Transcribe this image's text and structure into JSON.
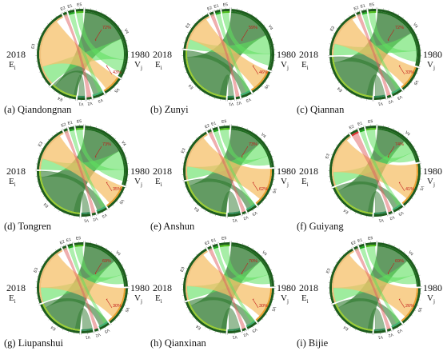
{
  "panels": [
    {
      "caption": "(a) Qiandongnan",
      "left_year": "2018",
      "right_year": "1980",
      "left_symbol": "E",
      "left_sub": "i",
      "right_symbol": "V",
      "right_sub": "j",
      "segments": [
        {
          "label": "E1",
          "group": "E",
          "value": 0.5,
          "color": "#1aa81a"
        },
        {
          "label": "E2",
          "group": "E",
          "value": 0.3,
          "color": "#c8a58a"
        },
        {
          "label": "E3",
          "group": "E",
          "value": 6.5,
          "color": "#f0c07a"
        },
        {
          "label": "E4",
          "group": "E",
          "value": 2.2,
          "color": "#9acd32"
        },
        {
          "label": "E5",
          "group": "E",
          "value": 0.6,
          "color": "#4cbb17"
        },
        {
          "label": "V1",
          "group": "V",
          "value": 0.6,
          "color": "#2e8b57"
        },
        {
          "label": "V2",
          "group": "V",
          "value": 0.4,
          "color": "#f4a6a6"
        },
        {
          "label": "V3",
          "group": "V",
          "value": 0.9,
          "color": "#3cb371"
        },
        {
          "label": "V4",
          "group": "V",
          "value": 7.2,
          "color": "#1e6b1e"
        },
        {
          "label": "V5",
          "group": "V",
          "value": 1.6,
          "color": "#e8a030"
        }
      ],
      "annotations": [
        {
          "text": "72%"
        },
        {
          "text": "43%"
        }
      ]
    },
    {
      "caption": "(b) Zunyi",
      "left_year": "2018",
      "right_year": "1980",
      "left_symbol": "E",
      "left_sub": "i",
      "right_symbol": "V",
      "right_sub": "j",
      "segments": [
        {
          "label": "E1",
          "group": "E",
          "value": 0.4,
          "color": "#1aa81a"
        },
        {
          "label": "E2",
          "group": "E",
          "value": 0.3,
          "color": "#c8a58a"
        },
        {
          "label": "E3",
          "group": "E",
          "value": 3.2,
          "color": "#f0c07a"
        },
        {
          "label": "E4",
          "group": "E",
          "value": 5.3,
          "color": "#9acd32"
        },
        {
          "label": "E5",
          "group": "E",
          "value": 0.6,
          "color": "#4cbb17"
        },
        {
          "label": "V1",
          "group": "V",
          "value": 0.5,
          "color": "#2e8b57"
        },
        {
          "label": "V2",
          "group": "V",
          "value": 0.3,
          "color": "#f4a6a6"
        },
        {
          "label": "V3",
          "group": "V",
          "value": 0.8,
          "color": "#3cb371"
        },
        {
          "label": "V4",
          "group": "V",
          "value": 6.2,
          "color": "#1e6b1e"
        },
        {
          "label": "V5",
          "group": "V",
          "value": 2.0,
          "color": "#e8a030"
        }
      ],
      "annotations": [
        {
          "text": "59%"
        },
        {
          "text": "46%"
        }
      ]
    },
    {
      "caption": "(c) Qiannan",
      "left_year": "2018",
      "right_year": "1980",
      "left_symbol": "E",
      "left_sub": "i",
      "right_symbol": "V",
      "right_sub": "j",
      "segments": [
        {
          "label": "E1",
          "group": "E",
          "value": 0.4,
          "color": "#1aa81a"
        },
        {
          "label": "E2",
          "group": "E",
          "value": 0.3,
          "color": "#c8a58a"
        },
        {
          "label": "E3",
          "group": "E",
          "value": 3.8,
          "color": "#f0c07a"
        },
        {
          "label": "E4",
          "group": "E",
          "value": 4.9,
          "color": "#9acd32"
        },
        {
          "label": "E5",
          "group": "E",
          "value": 0.6,
          "color": "#4cbb17"
        },
        {
          "label": "V1",
          "group": "V",
          "value": 0.9,
          "color": "#2e8b57"
        },
        {
          "label": "V2",
          "group": "V",
          "value": 0.3,
          "color": "#f4a6a6"
        },
        {
          "label": "V3",
          "group": "V",
          "value": 0.8,
          "color": "#3cb371"
        },
        {
          "label": "V4",
          "group": "V",
          "value": 6.0,
          "color": "#1e6b1e"
        },
        {
          "label": "V5",
          "group": "V",
          "value": 2.0,
          "color": "#e8a030"
        }
      ],
      "annotations": [
        {
          "text": "72%"
        },
        {
          "text": "33%"
        }
      ]
    },
    {
      "caption": "(d) Tongren",
      "left_year": "2018",
      "right_year": "1980",
      "left_symbol": "E",
      "left_sub": "i",
      "right_symbol": "V",
      "right_sub": "j",
      "segments": [
        {
          "label": "E1",
          "group": "E",
          "value": 0.4,
          "color": "#1aa81a"
        },
        {
          "label": "E2",
          "group": "E",
          "value": 0.3,
          "color": "#c8a58a"
        },
        {
          "label": "E3",
          "group": "E",
          "value": 3.6,
          "color": "#f0c07a"
        },
        {
          "label": "E4",
          "group": "E",
          "value": 5.1,
          "color": "#9acd32"
        },
        {
          "label": "E5",
          "group": "E",
          "value": 0.6,
          "color": "#4cbb17"
        },
        {
          "label": "V1",
          "group": "V",
          "value": 0.7,
          "color": "#2e8b57"
        },
        {
          "label": "V2",
          "group": "V",
          "value": 0.3,
          "color": "#f4a6a6"
        },
        {
          "label": "V3",
          "group": "V",
          "value": 0.8,
          "color": "#3cb371"
        },
        {
          "label": "V4",
          "group": "V",
          "value": 6.2,
          "color": "#1e6b1e"
        },
        {
          "label": "V5",
          "group": "V",
          "value": 2.0,
          "color": "#e8a030"
        }
      ],
      "annotations": [
        {
          "text": "73%"
        },
        {
          "text": "35%"
        }
      ]
    },
    {
      "caption": "(e) Anshun",
      "left_year": "2018",
      "right_year": "1980",
      "left_symbol": "E",
      "left_sub": "i",
      "right_symbol": "V",
      "right_sub": "j",
      "segments": [
        {
          "label": "E1",
          "group": "E",
          "value": 0.4,
          "color": "#1aa81a"
        },
        {
          "label": "E2",
          "group": "E",
          "value": 0.3,
          "color": "#c8a58a"
        },
        {
          "label": "E3",
          "group": "E",
          "value": 4.2,
          "color": "#f0c07a"
        },
        {
          "label": "E4",
          "group": "E",
          "value": 4.3,
          "color": "#9acd32"
        },
        {
          "label": "E5",
          "group": "E",
          "value": 0.8,
          "color": "#4cbb17"
        },
        {
          "label": "V1",
          "group": "V",
          "value": 1.0,
          "color": "#2e8b57"
        },
        {
          "label": "V2",
          "group": "V",
          "value": 0.3,
          "color": "#f4a6a6"
        },
        {
          "label": "V3",
          "group": "V",
          "value": 0.8,
          "color": "#3cb371"
        },
        {
          "label": "V4",
          "group": "V",
          "value": 4.8,
          "color": "#1e6b1e"
        },
        {
          "label": "V5",
          "group": "V",
          "value": 3.1,
          "color": "#e8a030"
        }
      ],
      "annotations": [
        {
          "text": "73%"
        },
        {
          "text": "62%"
        }
      ]
    },
    {
      "caption": "(f) Guiyang",
      "left_year": "2018",
      "right_year": "1980",
      "left_symbol": "E",
      "left_sub": "i",
      "right_symbol": "V",
      "right_sub": "j",
      "segments": [
        {
          "label": "E1",
          "group": "E",
          "value": 0.4,
          "color": "#1aa81a"
        },
        {
          "label": "E2",
          "group": "E",
          "value": 0.6,
          "color": "#e03030"
        },
        {
          "label": "E3",
          "group": "E",
          "value": 4.4,
          "color": "#f0c07a"
        },
        {
          "label": "E4",
          "group": "E",
          "value": 3.8,
          "color": "#9acd32"
        },
        {
          "label": "E5",
          "group": "E",
          "value": 0.8,
          "color": "#4cbb17"
        },
        {
          "label": "V1",
          "group": "V",
          "value": 1.0,
          "color": "#2e8b57"
        },
        {
          "label": "V2",
          "group": "V",
          "value": 0.3,
          "color": "#f4a6a6"
        },
        {
          "label": "V3",
          "group": "V",
          "value": 0.8,
          "color": "#3cb371"
        },
        {
          "label": "V4",
          "group": "V",
          "value": 4.4,
          "color": "#1e6b1e"
        },
        {
          "label": "V5",
          "group": "V",
          "value": 3.5,
          "color": "#e8a030"
        }
      ],
      "annotations": [
        {
          "text": "74%"
        },
        {
          "text": "41%"
        }
      ]
    },
    {
      "caption": "(g) Liupanshui",
      "left_year": "2018",
      "right_year": "1980",
      "left_symbol": "E",
      "left_sub": "i",
      "right_symbol": "V",
      "right_sub": "j",
      "segments": [
        {
          "label": "E1",
          "group": "E",
          "value": 0.4,
          "color": "#1aa81a"
        },
        {
          "label": "E2",
          "group": "E",
          "value": 0.3,
          "color": "#c8a58a"
        },
        {
          "label": "E3",
          "group": "E",
          "value": 4.8,
          "color": "#f0c07a"
        },
        {
          "label": "E4",
          "group": "E",
          "value": 3.8,
          "color": "#9acd32"
        },
        {
          "label": "E5",
          "group": "E",
          "value": 0.7,
          "color": "#4cbb17"
        },
        {
          "label": "V1",
          "group": "V",
          "value": 0.9,
          "color": "#2e8b57"
        },
        {
          "label": "V2",
          "group": "V",
          "value": 0.3,
          "color": "#f4a6a6"
        },
        {
          "label": "V3",
          "group": "V",
          "value": 0.8,
          "color": "#3cb371"
        },
        {
          "label": "V4",
          "group": "V",
          "value": 5.0,
          "color": "#1e6b1e"
        },
        {
          "label": "V5",
          "group": "V",
          "value": 3.0,
          "color": "#e8a030"
        }
      ],
      "annotations": [
        {
          "text": "69%"
        },
        {
          "text": "30%"
        }
      ]
    },
    {
      "caption": "(h) Qianxinan",
      "left_year": "2018",
      "right_year": "1980",
      "left_symbol": "E",
      "left_sub": "i",
      "right_symbol": "V",
      "right_sub": "j",
      "segments": [
        {
          "label": "E1",
          "group": "E",
          "value": 0.4,
          "color": "#1aa81a"
        },
        {
          "label": "E2",
          "group": "E",
          "value": 0.3,
          "color": "#c8a58a"
        },
        {
          "label": "E3",
          "group": "E",
          "value": 4.5,
          "color": "#f0c07a"
        },
        {
          "label": "E4",
          "group": "E",
          "value": 4.0,
          "color": "#9acd32"
        },
        {
          "label": "E5",
          "group": "E",
          "value": 0.8,
          "color": "#4cbb17"
        },
        {
          "label": "V1",
          "group": "V",
          "value": 1.0,
          "color": "#2e8b57"
        },
        {
          "label": "V2",
          "group": "V",
          "value": 0.3,
          "color": "#f4a6a6"
        },
        {
          "label": "V3",
          "group": "V",
          "value": 0.8,
          "color": "#3cb371"
        },
        {
          "label": "V4",
          "group": "V",
          "value": 5.0,
          "color": "#1e6b1e"
        },
        {
          "label": "V5",
          "group": "V",
          "value": 2.9,
          "color": "#e8a030"
        }
      ],
      "annotations": [
        {
          "text": "70%"
        },
        {
          "text": "30%"
        }
      ]
    },
    {
      "caption": "(i) Bijie",
      "left_year": "2018",
      "right_year": "1980",
      "left_symbol": "E",
      "left_sub": "i",
      "right_symbol": "V",
      "right_sub": "j",
      "segments": [
        {
          "label": "E1",
          "group": "E",
          "value": 0.4,
          "color": "#1aa81a"
        },
        {
          "label": "E2",
          "group": "E",
          "value": 0.3,
          "color": "#c8a58a"
        },
        {
          "label": "E3",
          "group": "E",
          "value": 4.7,
          "color": "#f0c07a"
        },
        {
          "label": "E4",
          "group": "E",
          "value": 3.8,
          "color": "#9acd32"
        },
        {
          "label": "E5",
          "group": "E",
          "value": 0.8,
          "color": "#4cbb17"
        },
        {
          "label": "V1",
          "group": "V",
          "value": 0.9,
          "color": "#2e8b57"
        },
        {
          "label": "V2",
          "group": "V",
          "value": 0.3,
          "color": "#f4a6a6"
        },
        {
          "label": "V3",
          "group": "V",
          "value": 0.8,
          "color": "#3cb371"
        },
        {
          "label": "V4",
          "group": "V",
          "value": 5.0,
          "color": "#1e6b1e"
        },
        {
          "label": "V5",
          "group": "V",
          "value": 3.0,
          "color": "#e8a030"
        }
      ],
      "annotations": [
        {
          "text": "69%"
        },
        {
          "text": "26%"
        }
      ]
    }
  ],
  "colors": {
    "outer_ring": "#1d5c1d",
    "ribbon_from_E3": "#f5c06a",
    "ribbon_to_E4": "#2f7a2f",
    "ribbon_light_green": "#5ee05e",
    "annotation": "#c21a1a"
  }
}
